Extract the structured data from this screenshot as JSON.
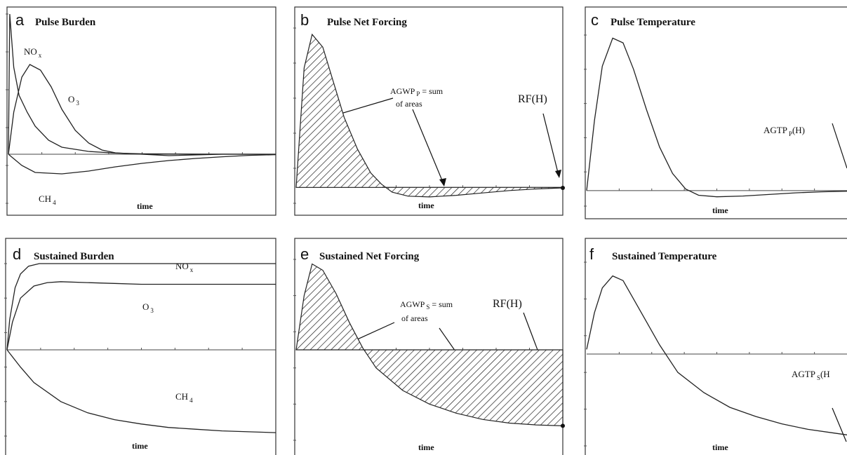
{
  "chart_data": [
    {
      "panel": "a",
      "title": "Pulse Burden",
      "type": "line",
      "xlabel": "time",
      "ylabel": "",
      "xlim": [
        0,
        10
      ],
      "ylim": [
        -0.35,
        1.0
      ],
      "series": [
        {
          "name": "NOx",
          "label_main": "NO",
          "label_sub": "x",
          "x": [
            0,
            0.05,
            0.2,
            0.4,
            0.7,
            1,
            1.5,
            2,
            3,
            4,
            5,
            7,
            10
          ],
          "y": [
            0,
            1.0,
            0.62,
            0.42,
            0.3,
            0.2,
            0.1,
            0.05,
            0.02,
            0.008,
            0.003,
            0.001,
            0
          ]
        },
        {
          "name": "O3",
          "label_main": "O",
          "label_sub": "3",
          "x": [
            0,
            0.2,
            0.5,
            0.8,
            1.2,
            1.6,
            2,
            2.5,
            3,
            3.5,
            4,
            5,
            6,
            8,
            10
          ],
          "y": [
            0,
            0.3,
            0.55,
            0.64,
            0.6,
            0.48,
            0.32,
            0.17,
            0.08,
            0.03,
            0.01,
            0,
            -0.01,
            0,
            0
          ]
        },
        {
          "name": "CH4",
          "label_main": "CH",
          "label_sub": "4",
          "x": [
            0,
            0.5,
            1,
            2,
            3,
            4,
            5,
            6,
            7,
            8,
            9,
            10
          ],
          "y": [
            0,
            -0.08,
            -0.13,
            -0.14,
            -0.12,
            -0.09,
            -0.065,
            -0.045,
            -0.03,
            -0.018,
            -0.008,
            -0.003
          ]
        }
      ]
    },
    {
      "panel": "b",
      "title": "Pulse Net Forcing",
      "type": "area",
      "xlabel": "time",
      "ylabel": "",
      "xlim": [
        0,
        10
      ],
      "ylim": [
        -0.1,
        1.0
      ],
      "annotations": {
        "agwp_main": "AGWP",
        "agwp_sub": "P",
        "agwp_rest": " = sum",
        "agwp_line2": "of areas",
        "rf": "RF(H)"
      },
      "series": [
        {
          "name": "net forcing",
          "x": [
            0,
            0.3,
            0.6,
            1,
            1.4,
            1.8,
            2.3,
            2.8,
            3.2,
            3.6,
            4.2,
            5,
            6,
            7,
            8,
            9,
            10
          ],
          "y": [
            0,
            0.75,
            0.96,
            0.88,
            0.66,
            0.44,
            0.24,
            0.09,
            0.02,
            -0.03,
            -0.055,
            -0.06,
            -0.05,
            -0.035,
            -0.02,
            -0.01,
            -0.003
          ]
        }
      ]
    },
    {
      "panel": "c",
      "title": "Pulse Temperature",
      "type": "line",
      "xlabel": "time",
      "ylabel": "",
      "xlim": [
        0,
        10
      ],
      "ylim": [
        -0.1,
        1.0
      ],
      "annotations": {
        "agtp_main": "AGTP",
        "agtp_sub": "P",
        "agtp_rest": "(H)"
      },
      "series": [
        {
          "name": "temperature",
          "x": [
            0,
            0.3,
            0.6,
            1,
            1.4,
            1.8,
            2.3,
            2.8,
            3.3,
            3.8,
            4.3,
            5,
            6,
            7,
            8,
            9,
            10
          ],
          "y": [
            0,
            0.45,
            0.8,
            0.98,
            0.95,
            0.78,
            0.52,
            0.28,
            0.11,
            0.01,
            -0.03,
            -0.04,
            -0.035,
            -0.025,
            -0.015,
            -0.008,
            -0.004
          ]
        }
      ]
    },
    {
      "panel": "d",
      "title": "Sustained Burden",
      "type": "line",
      "xlabel": "time",
      "ylabel": "",
      "xlim": [
        0,
        10
      ],
      "ylim": [
        -1.0,
        1.0
      ],
      "series": [
        {
          "name": "NOx",
          "label_main": "NO",
          "label_sub": "x",
          "x": [
            0,
            0.1,
            0.3,
            0.5,
            0.8,
            1.2,
            2,
            3,
            5,
            7,
            10
          ],
          "y": [
            0,
            0.35,
            0.72,
            0.88,
            0.97,
            1.0,
            1.0,
            1.0,
            1.0,
            1.0,
            1.0
          ]
        },
        {
          "name": "O3",
          "label_main": "O",
          "label_sub": "3",
          "x": [
            0,
            0.2,
            0.5,
            1,
            1.5,
            2,
            3,
            4,
            5,
            7,
            10
          ],
          "y": [
            0,
            0.32,
            0.6,
            0.74,
            0.78,
            0.79,
            0.78,
            0.77,
            0.76,
            0.76,
            0.76
          ]
        },
        {
          "name": "CH4",
          "label_main": "CH",
          "label_sub": "4",
          "x": [
            0,
            0.5,
            1,
            2,
            3,
            4,
            5,
            6,
            7,
            8,
            9,
            10
          ],
          "y": [
            0,
            -0.2,
            -0.38,
            -0.6,
            -0.73,
            -0.81,
            -0.86,
            -0.9,
            -0.92,
            -0.94,
            -0.95,
            -0.96
          ]
        }
      ]
    },
    {
      "panel": "e",
      "title": "Sustained Net Forcing",
      "type": "area",
      "xlabel": "time",
      "ylabel": "",
      "xlim": [
        0,
        10
      ],
      "ylim": [
        -1.0,
        1.0
      ],
      "annotations": {
        "agwp_main": "AGWP",
        "agwp_sub": "S",
        "agwp_rest": " = sum",
        "agwp_line2": "of areas",
        "rf": "RF(H)"
      },
      "series": [
        {
          "name": "net forcing",
          "x": [
            0,
            0.3,
            0.6,
            1,
            1.5,
            2,
            2.5,
            3,
            4,
            5,
            6,
            7,
            8,
            9,
            10
          ],
          "y": [
            0,
            0.6,
            0.95,
            0.88,
            0.62,
            0.3,
            0.02,
            -0.2,
            -0.45,
            -0.6,
            -0.7,
            -0.77,
            -0.81,
            -0.83,
            -0.84
          ]
        }
      ]
    },
    {
      "panel": "f",
      "title": "Sustained Temperature",
      "type": "line",
      "xlabel": "time",
      "ylabel": "",
      "xlim": [
        0,
        10
      ],
      "ylim": [
        -1.0,
        1.0
      ],
      "annotations": {
        "agtp_main": "AGTP",
        "agtp_sub": "S",
        "agtp_rest": "(H"
      },
      "series": [
        {
          "name": "temperature",
          "x": [
            0,
            0.3,
            0.6,
            1,
            1.4,
            1.8,
            2.3,
            2.8,
            3.5,
            4.5,
            5.5,
            6.5,
            7.5,
            8.5,
            9.5,
            10
          ],
          "y": [
            0.05,
            0.45,
            0.72,
            0.85,
            0.8,
            0.6,
            0.35,
            0.1,
            -0.2,
            -0.42,
            -0.58,
            -0.68,
            -0.76,
            -0.82,
            -0.86,
            -0.88
          ]
        }
      ]
    }
  ],
  "panel_letters": [
    "a",
    "b",
    "c",
    "d",
    "e",
    "f"
  ]
}
